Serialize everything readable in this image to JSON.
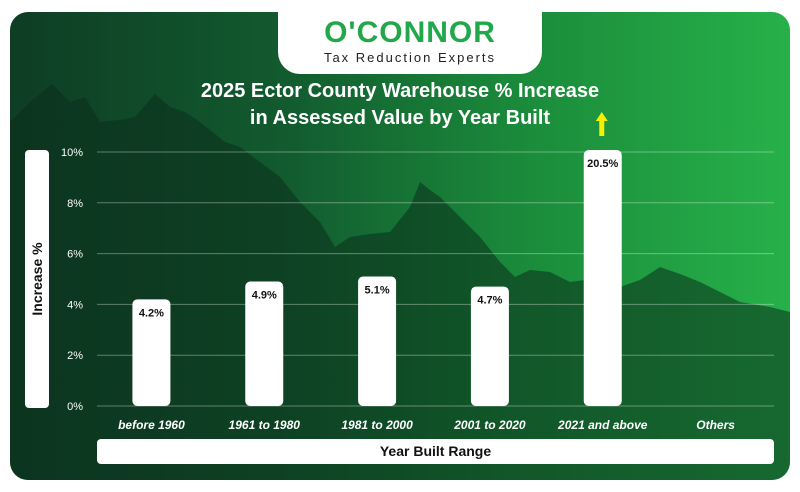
{
  "brand": {
    "name": "O'CONNOR",
    "tagline": "Tax Reduction Experts"
  },
  "colors": {
    "brand_green": "#22a84a",
    "arrow_yellow": "#f4f000",
    "bar": "#ffffff",
    "text_white": "#ffffff"
  },
  "chart_data": {
    "type": "bar",
    "title_line1": "2025 Ector County Warehouse % Increase",
    "title_line2": "in Assessed Value by Year Built",
    "xlabel": "Year Built Range",
    "ylabel": "Increase %",
    "categories": [
      "before 1960",
      "1961 to 1980",
      "1981 to 2000",
      "2001 to 2020",
      "2021 and above",
      "Others"
    ],
    "values": [
      4.2,
      4.9,
      5.1,
      4.7,
      20.5,
      null
    ],
    "value_labels": [
      "4.2%",
      "4.9%",
      "5.1%",
      "4.7%",
      "20.5%",
      ""
    ],
    "ylim": [
      0,
      10
    ],
    "yticks": [
      "0%",
      "2%",
      "4%",
      "6%",
      "8%",
      "10%"
    ],
    "ytick_values": [
      0,
      2,
      4,
      6,
      8,
      10
    ],
    "grid": true,
    "annotations": [
      {
        "category": "2021 and above",
        "marker": "up-arrow",
        "meaning": "value exceeds axis range"
      }
    ]
  }
}
